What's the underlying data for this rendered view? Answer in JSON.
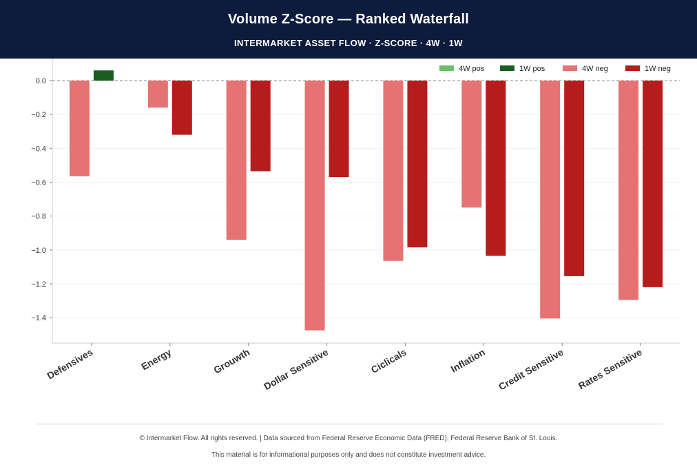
{
  "header": {
    "title": "Volume Z-Score — Ranked Waterfall",
    "subtitle": "INTERMARKET ASSET FLOW  ·  Z-SCORE  ·  4W · 1W"
  },
  "chart_data": {
    "type": "bar",
    "title": "Volume Z-Score — Ranked Waterfall",
    "subtitle": "INTERMARKET ASSET FLOW  ·  Z-SCORE  ·  4W · 1W",
    "xlabel": "",
    "ylabel": "",
    "categories": [
      "Defensives",
      "Energy",
      "Grouwth",
      "Dollar Sensitive",
      "Ciclicals",
      "Inflation",
      "Credit Sensitive",
      "Rates Sensitive"
    ],
    "series": [
      {
        "name": "4W",
        "values": [
          -0.565,
          -0.16,
          -0.94,
          -1.475,
          -1.065,
          -0.75,
          -1.405,
          -1.295
        ]
      },
      {
        "name": "1W",
        "values": [
          0.06,
          -0.32,
          -0.535,
          -0.57,
          -0.985,
          -1.035,
          -1.155,
          -1.22
        ]
      }
    ],
    "ylim": [
      -1.55,
      0.13
    ],
    "yticks": [
      "0.0",
      "−0.2",
      "−0.4",
      "−0.6",
      "−0.8",
      "−1.0",
      "−1.2",
      "−1.4"
    ],
    "grid": true,
    "zero_line": "dashed",
    "legend": {
      "placement": "top-right",
      "entries": [
        {
          "label": "4W pos",
          "color": "#6abf69"
        },
        {
          "label": "1W pos",
          "color": "#1b5e20"
        },
        {
          "label": "4W neg",
          "color": "#e57373"
        },
        {
          "label": "1W neg",
          "color": "#b71c1c"
        }
      ]
    },
    "colors": {
      "4W_pos": "#6abf69",
      "1W_pos": "#1b5e20",
      "4W_neg": "#e57373",
      "1W_neg": "#b71c1c"
    }
  },
  "footer": {
    "line1": "© Intermarket Flow. All rights reserved.  |  Data sourced from Federal Reserve Economic Data (FRED), Federal Reserve Bank of St. Louis.",
    "line2": "This material is for informational purposes only and does not constitute investment advice."
  }
}
